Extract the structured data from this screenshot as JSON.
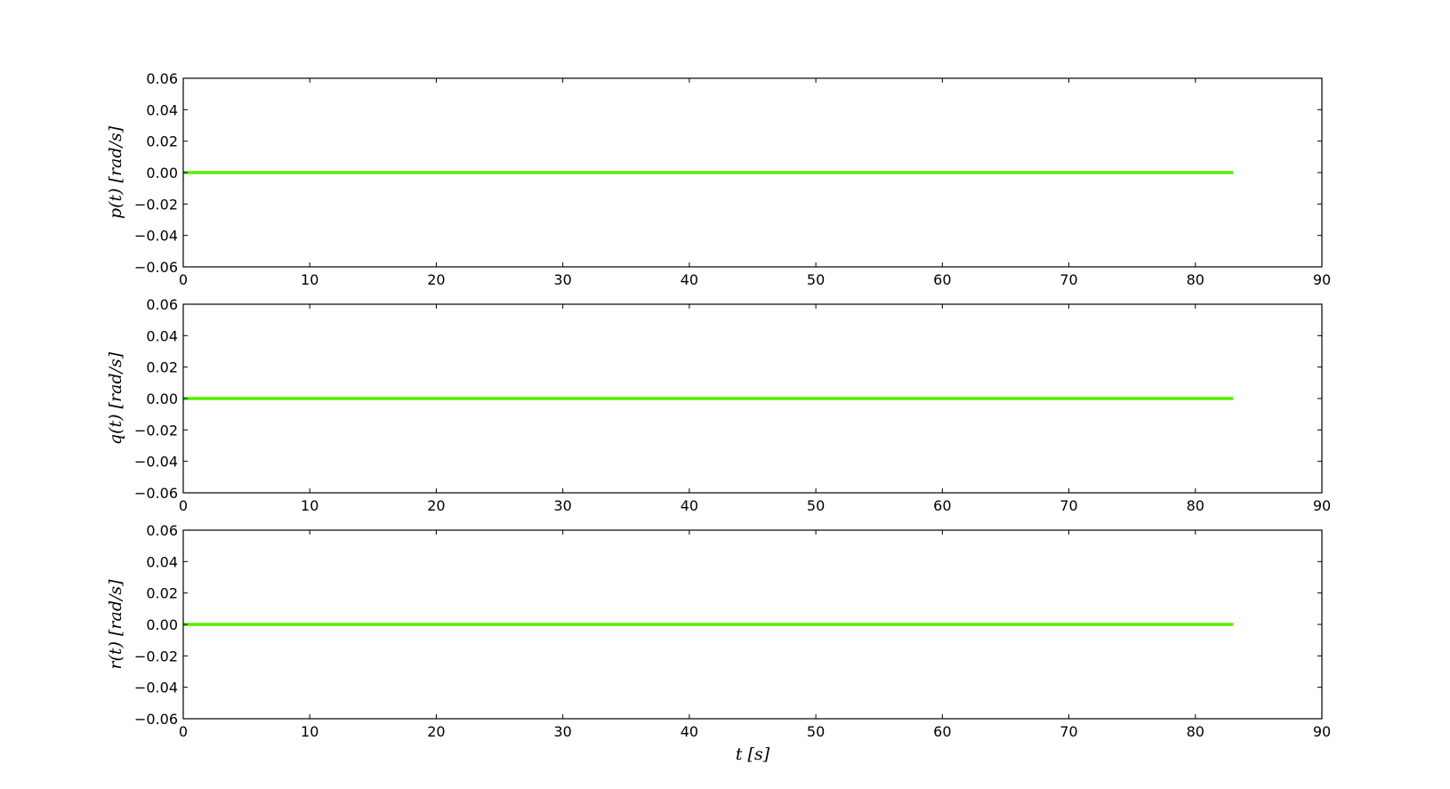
{
  "chart_data": [
    {
      "type": "line",
      "ylabel": "p(t) [rad/s]",
      "xlabel": "",
      "xlim": [
        0,
        90
      ],
      "ylim": [
        -0.06,
        0.06
      ],
      "xticks": [
        "0",
        "10",
        "20",
        "30",
        "40",
        "50",
        "60",
        "70",
        "80",
        "90"
      ],
      "yticks": [
        "0.06",
        "0.04",
        "0.02",
        "0.00",
        "−0.02",
        "−0.04",
        "−0.06"
      ],
      "series": [
        {
          "x": [
            0,
            83
          ],
          "y": [
            0,
            0
          ],
          "color": "#55ee00"
        }
      ]
    },
    {
      "type": "line",
      "ylabel": "q(t) [rad/s]",
      "xlabel": "",
      "xlim": [
        0,
        90
      ],
      "ylim": [
        -0.06,
        0.06
      ],
      "xticks": [
        "0",
        "10",
        "20",
        "30",
        "40",
        "50",
        "60",
        "70",
        "80",
        "90"
      ],
      "yticks": [
        "0.06",
        "0.04",
        "0.02",
        "0.00",
        "−0.02",
        "−0.04",
        "−0.06"
      ],
      "series": [
        {
          "x": [
            0,
            83
          ],
          "y": [
            0,
            0
          ],
          "color": "#55ee00"
        }
      ]
    },
    {
      "type": "line",
      "ylabel": "r(t) [rad/s]",
      "xlabel": "t [s]",
      "xlim": [
        0,
        90
      ],
      "ylim": [
        -0.06,
        0.06
      ],
      "xticks": [
        "0",
        "10",
        "20",
        "30",
        "40",
        "50",
        "60",
        "70",
        "80",
        "90"
      ],
      "yticks": [
        "0.06",
        "0.04",
        "0.02",
        "0.00",
        "−0.02",
        "−0.04",
        "−0.06"
      ],
      "series": [
        {
          "x": [
            0,
            83
          ],
          "y": [
            0,
            0
          ],
          "color": "#55ee00"
        }
      ]
    }
  ]
}
